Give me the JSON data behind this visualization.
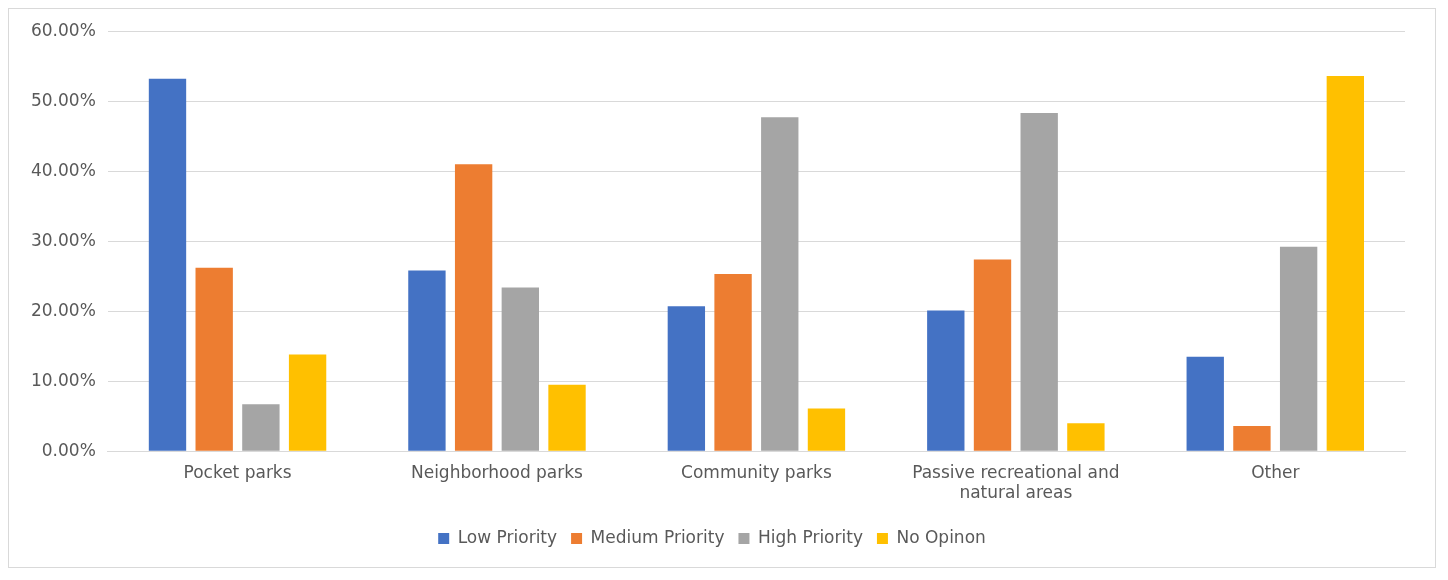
{
  "chart_data": {
    "type": "bar",
    "categories": [
      "Pocket parks",
      "Neighborhood parks",
      "Community parks",
      "Passive recreational and natural areas",
      "Other"
    ],
    "series": [
      {
        "name": "Low Priority",
        "color": "#4472c4",
        "values": [
          53.2,
          25.8,
          20.7,
          20.1,
          13.5
        ]
      },
      {
        "name": "Medium Priority",
        "color": "#ed7d31",
        "values": [
          26.2,
          41.0,
          25.3,
          27.4,
          3.6
        ]
      },
      {
        "name": "High Priority",
        "color": "#a5a5a5",
        "values": [
          6.7,
          23.4,
          47.7,
          48.3,
          29.2
        ]
      },
      {
        "name": "No Opinon",
        "color": "#ffc000",
        "values": [
          13.8,
          9.5,
          6.1,
          4.0,
          53.6
        ]
      }
    ],
    "ylim": [
      0,
      60
    ],
    "yticks": [
      {
        "value": 0,
        "label": "0.00%"
      },
      {
        "value": 10,
        "label": "10.00%"
      },
      {
        "value": 20,
        "label": "20.00%"
      },
      {
        "value": 30,
        "label": "30.00%"
      },
      {
        "value": 40,
        "label": "40.00%"
      },
      {
        "value": 50,
        "label": "50.00%"
      },
      {
        "value": 60,
        "label": "60.00%"
      }
    ],
    "grid": "y",
    "legend": "bottom"
  }
}
